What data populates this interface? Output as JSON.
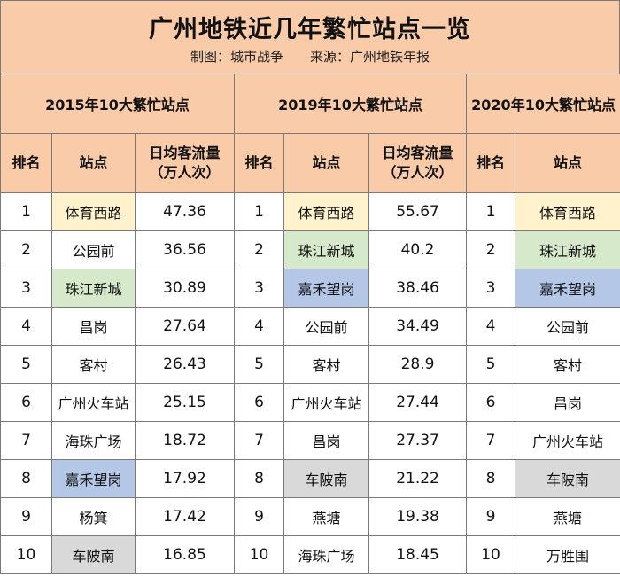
{
  "title": "广州地铁近几年繁忙站点一览",
  "credit": "制图：城市战争",
  "source": "来源：广州地铁年报",
  "groups": [
    "2015年10大繁忙站点",
    "2019年10大繁忙站点",
    "2020年10大繁忙站点"
  ],
  "columns": {
    "rank": "排名",
    "station": "站点",
    "flow_line1": "日均客流量",
    "flow_line2": "（万人次）"
  },
  "colors": {
    "header": "#f9cba9",
    "yellow": "#fff2cc",
    "green": "#d6eacb",
    "blue": "#b4c7e7",
    "gray": "#d9d9d9"
  },
  "rows": [
    {
      "rank": "1",
      "s2015": "体育西路",
      "v2015": "47.36",
      "s2019": "体育西路",
      "v2019": "55.67",
      "s2020": "体育西路"
    },
    {
      "rank": "2",
      "s2015": "公园前",
      "v2015": "36.56",
      "s2019": "珠江新城",
      "v2019": "40.2",
      "s2020": "珠江新城"
    },
    {
      "rank": "3",
      "s2015": "珠江新城",
      "v2015": "30.89",
      "s2019": "嘉禾望岗",
      "v2019": "38.46",
      "s2020": "嘉禾望岗"
    },
    {
      "rank": "4",
      "s2015": "昌岗",
      "v2015": "27.64",
      "s2019": "公园前",
      "v2019": "34.49",
      "s2020": "公园前"
    },
    {
      "rank": "5",
      "s2015": "客村",
      "v2015": "26.43",
      "s2019": "客村",
      "v2019": "28.9",
      "s2020": "客村"
    },
    {
      "rank": "6",
      "s2015": "广州火车站",
      "v2015": "25.15",
      "s2019": "广州火车站",
      "v2019": "27.44",
      "s2020": "昌岗"
    },
    {
      "rank": "7",
      "s2015": "海珠广场",
      "v2015": "18.72",
      "s2019": "昌岗",
      "v2019": "27.37",
      "s2020": "广州火车站"
    },
    {
      "rank": "8",
      "s2015": "嘉禾望岗",
      "v2015": "17.92",
      "s2019": "车陂南",
      "v2019": "21.22",
      "s2020": "车陂南"
    },
    {
      "rank": "9",
      "s2015": "杨箕",
      "v2015": "17.42",
      "s2019": "燕塘",
      "v2019": "19.38",
      "s2020": "燕塘"
    },
    {
      "rank": "10",
      "s2015": "车陂南",
      "v2015": "16.85",
      "s2019": "海珠广场",
      "v2019": "18.45",
      "s2020": "万胜围"
    }
  ]
}
